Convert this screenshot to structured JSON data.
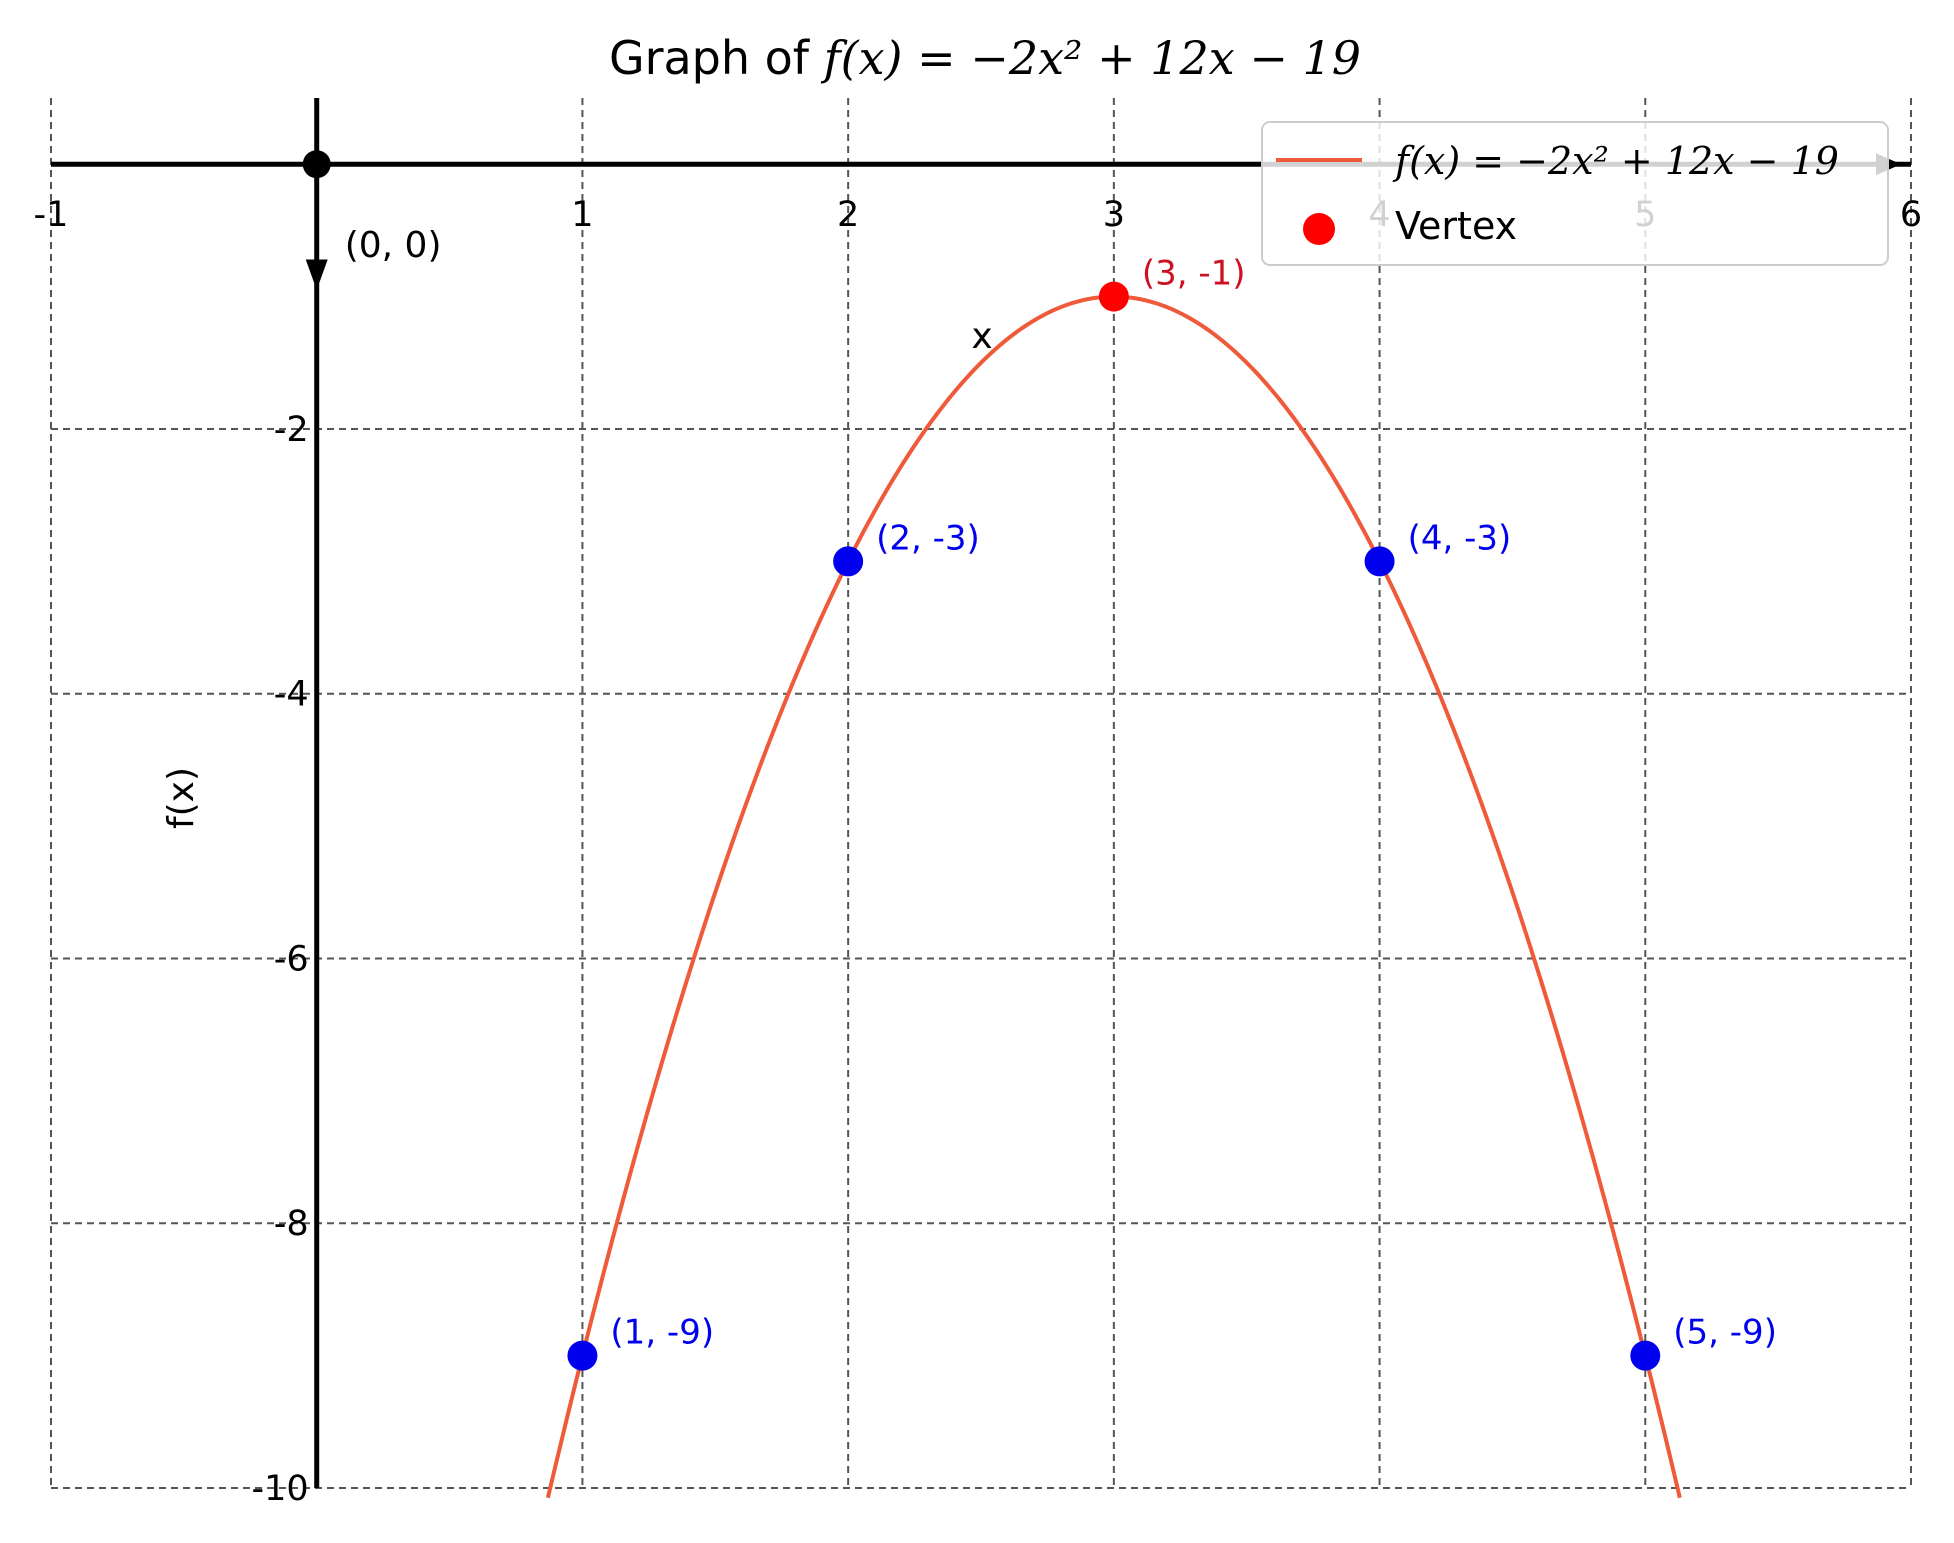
{
  "chart_data": {
    "type": "line",
    "title_prefix": "Graph of ",
    "title_math": "f(x) = −2x² + 12x − 19",
    "xlabel": "x",
    "ylabel": "f(x)",
    "xlim": [
      -1,
      6
    ],
    "ylim": [
      -10,
      0.5
    ],
    "grid": true,
    "x_ticks": [
      -1,
      1,
      2,
      3,
      4,
      5,
      6
    ],
    "x_tick_labels": [
      "-1",
      "1",
      "2",
      "3",
      "4",
      "5",
      "6"
    ],
    "y_ticks": [
      -2,
      -4,
      -6,
      -8,
      -10
    ],
    "y_tick_labels": [
      "-2",
      "-4",
      "-6",
      "-8",
      "-10"
    ],
    "function": {
      "name": "f(x) = −2x² + 12x − 19",
      "coefficients": {
        "a": -2,
        "b": 12,
        "c": -19
      },
      "x_range": [
        0.87,
        5.13
      ],
      "color": "#EE5A3A"
    },
    "origin": {
      "x": 0,
      "y": 0,
      "label": "(0, 0)",
      "color": "#000000"
    },
    "vertex": {
      "x": 3,
      "y": -1,
      "label": "(3, -1)",
      "color": "#FF0000",
      "label_color": "#CC1122"
    },
    "points": [
      {
        "x": 1,
        "y": -9,
        "label": "(1, -9)"
      },
      {
        "x": 2,
        "y": -3,
        "label": "(2, -3)"
      },
      {
        "x": 4,
        "y": -3,
        "label": "(4, -3)"
      },
      {
        "x": 5,
        "y": -9,
        "label": "(5, -9)"
      }
    ],
    "points_color": "#0000EE",
    "legend": {
      "position": "top-right",
      "entries": [
        {
          "label": "f(x) = −2x² + 12x − 19",
          "kind": "line"
        },
        {
          "label": "Vertex",
          "kind": "marker"
        }
      ]
    }
  }
}
